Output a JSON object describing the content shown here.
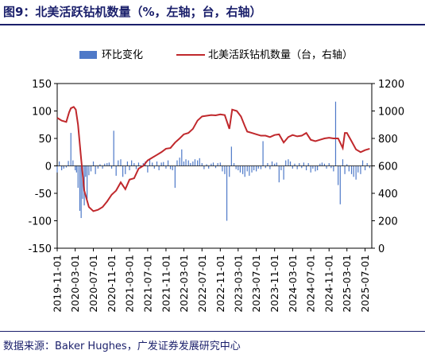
{
  "title": "图9：北美活跃钻机数量（%，左轴；台，右轴）",
  "source": "数据来源：Baker Hughes，广发证券发展研究中心",
  "chart_data": {
    "type": "bar+line",
    "x_ticks": [
      "2019-11-01",
      "2020-03-01",
      "2020-07-01",
      "2020-11-01",
      "2021-03-01",
      "2021-07-01",
      "2021-11-01",
      "2022-03-01",
      "2022-07-01",
      "2022-11-01",
      "2023-03-01",
      "2023-07-01",
      "2023-11-01",
      "2024-03-01",
      "2024-07-01",
      "2024-11-01",
      "2025-03-01",
      "2025-07-01"
    ],
    "xlim": [
      "2019-11-01",
      "2025-08-15"
    ],
    "left_axis": {
      "ticks": [
        "150",
        "100",
        "50",
        "0",
        "-50",
        "-100",
        "-150"
      ],
      "ylim": [
        -150,
        150
      ]
    },
    "right_axis": {
      "ticks": [
        "1200",
        "1000",
        "800",
        "600",
        "400",
        "200",
        "0"
      ],
      "ylim": [
        0,
        1200
      ]
    },
    "legend": {
      "placement": "top",
      "bar_label": "环比变化",
      "line_label": "北美活跃钻机数量（台，右轴）"
    },
    "colors": {
      "bar": "#4e79c8",
      "line": "#c0282c"
    },
    "line_series": [
      [
        "2019-11-01",
        950
      ],
      [
        "2019-12-01",
        930
      ],
      [
        "2020-01-01",
        920
      ],
      [
        "2020-01-20",
        990
      ],
      [
        "2020-02-01",
        1020
      ],
      [
        "2020-02-20",
        1030
      ],
      [
        "2020-03-05",
        1010
      ],
      [
        "2020-03-20",
        900
      ],
      [
        "2020-04-10",
        650
      ],
      [
        "2020-05-01",
        420
      ],
      [
        "2020-06-01",
        300
      ],
      [
        "2020-07-01",
        270
      ],
      [
        "2020-08-01",
        280
      ],
      [
        "2020-09-01",
        300
      ],
      [
        "2020-10-01",
        340
      ],
      [
        "2020-11-01",
        390
      ],
      [
        "2020-12-01",
        420
      ],
      [
        "2021-01-01",
        480
      ],
      [
        "2021-02-01",
        430
      ],
      [
        "2021-03-01",
        500
      ],
      [
        "2021-04-01",
        510
      ],
      [
        "2021-05-01",
        580
      ],
      [
        "2021-06-01",
        600
      ],
      [
        "2021-07-01",
        640
      ],
      [
        "2021-08-01",
        660
      ],
      [
        "2021-09-01",
        680
      ],
      [
        "2021-10-01",
        700
      ],
      [
        "2021-11-01",
        725
      ],
      [
        "2021-12-01",
        730
      ],
      [
        "2022-01-01",
        770
      ],
      [
        "2022-02-01",
        800
      ],
      [
        "2022-03-01",
        830
      ],
      [
        "2022-04-01",
        840
      ],
      [
        "2022-05-01",
        870
      ],
      [
        "2022-06-01",
        930
      ],
      [
        "2022-07-01",
        960
      ],
      [
        "2022-08-01",
        965
      ],
      [
        "2022-09-01",
        970
      ],
      [
        "2022-10-01",
        968
      ],
      [
        "2022-11-01",
        975
      ],
      [
        "2022-12-01",
        970
      ],
      [
        "2023-01-01",
        870
      ],
      [
        "2023-01-20",
        1010
      ],
      [
        "2023-02-20",
        1000
      ],
      [
        "2023-03-20",
        960
      ],
      [
        "2023-04-15",
        890
      ],
      [
        "2023-05-01",
        850
      ],
      [
        "2023-06-01",
        840
      ],
      [
        "2023-07-01",
        830
      ],
      [
        "2023-08-01",
        820
      ],
      [
        "2023-09-01",
        820
      ],
      [
        "2023-10-01",
        810
      ],
      [
        "2023-11-01",
        825
      ],
      [
        "2023-12-01",
        830
      ],
      [
        "2024-01-01",
        770
      ],
      [
        "2024-02-01",
        810
      ],
      [
        "2024-03-01",
        825
      ],
      [
        "2024-04-01",
        815
      ],
      [
        "2024-05-01",
        820
      ],
      [
        "2024-06-01",
        840
      ],
      [
        "2024-07-01",
        790
      ],
      [
        "2024-08-01",
        780
      ],
      [
        "2024-09-01",
        790
      ],
      [
        "2024-10-01",
        800
      ],
      [
        "2024-11-01",
        805
      ],
      [
        "2024-12-01",
        800
      ],
      [
        "2025-01-01",
        800
      ],
      [
        "2025-02-01",
        730
      ],
      [
        "2025-02-15",
        840
      ],
      [
        "2025-03-01",
        840
      ],
      [
        "2025-04-01",
        780
      ],
      [
        "2025-05-01",
        720
      ],
      [
        "2025-06-01",
        700
      ],
      [
        "2025-07-01",
        715
      ],
      [
        "2025-08-01",
        725
      ]
    ],
    "bar_series": [
      [
        "2019-11-01",
        -12
      ],
      [
        "2019-11-15",
        8
      ],
      [
        "2019-12-01",
        -8
      ],
      [
        "2019-12-15",
        -5
      ],
      [
        "2020-01-01",
        -3
      ],
      [
        "2020-01-15",
        9
      ],
      [
        "2020-02-01",
        60
      ],
      [
        "2020-02-15",
        10
      ],
      [
        "2020-03-01",
        -8
      ],
      [
        "2020-03-10",
        -12
      ],
      [
        "2020-03-20",
        -40
      ],
      [
        "2020-04-01",
        -82
      ],
      [
        "2020-04-10",
        -95
      ],
      [
        "2020-04-20",
        -60
      ],
      [
        "2020-05-01",
        -72
      ],
      [
        "2020-05-10",
        -20
      ],
      [
        "2020-05-20",
        -60
      ],
      [
        "2020-06-01",
        -17
      ],
      [
        "2020-06-15",
        -10
      ],
      [
        "2020-07-01",
        8
      ],
      [
        "2020-07-15",
        -15
      ],
      [
        "2020-08-01",
        -5
      ],
      [
        "2020-08-15",
        3
      ],
      [
        "2020-09-01",
        -5
      ],
      [
        "2020-09-15",
        4
      ],
      [
        "2020-10-01",
        5
      ],
      [
        "2020-10-15",
        6
      ],
      [
        "2020-11-01",
        -5
      ],
      [
        "2020-11-15",
        64
      ],
      [
        "2020-12-01",
        -18
      ],
      [
        "2020-12-15",
        10
      ],
      [
        "2021-01-01",
        12
      ],
      [
        "2021-01-15",
        -20
      ],
      [
        "2021-02-01",
        -15
      ],
      [
        "2021-02-15",
        8
      ],
      [
        "2021-03-01",
        -8
      ],
      [
        "2021-03-15",
        10
      ],
      [
        "2021-04-01",
        5
      ],
      [
        "2021-04-15",
        -6
      ],
      [
        "2021-05-01",
        6
      ],
      [
        "2021-05-15",
        -4
      ],
      [
        "2021-06-01",
        5
      ],
      [
        "2021-06-15",
        8
      ],
      [
        "2021-07-01",
        -12
      ],
      [
        "2021-07-15",
        12
      ],
      [
        "2021-08-01",
        6
      ],
      [
        "2021-08-15",
        -5
      ],
      [
        "2021-09-01",
        8
      ],
      [
        "2021-09-15",
        -8
      ],
      [
        "2021-10-01",
        6
      ],
      [
        "2021-10-15",
        7
      ],
      [
        "2021-11-01",
        -5
      ],
      [
        "2021-11-15",
        10
      ],
      [
        "2021-12-01",
        -6
      ],
      [
        "2021-12-15",
        -8
      ],
      [
        "2022-01-01",
        -40
      ],
      [
        "2022-01-15",
        10
      ],
      [
        "2022-02-01",
        15
      ],
      [
        "2022-02-15",
        30
      ],
      [
        "2022-03-01",
        8
      ],
      [
        "2022-03-15",
        12
      ],
      [
        "2022-04-01",
        10
      ],
      [
        "2022-04-15",
        5
      ],
      [
        "2022-05-01",
        8
      ],
      [
        "2022-05-15",
        12
      ],
      [
        "2022-06-01",
        10
      ],
      [
        "2022-06-15",
        14
      ],
      [
        "2022-07-01",
        5
      ],
      [
        "2022-07-15",
        -6
      ],
      [
        "2022-08-01",
        3
      ],
      [
        "2022-08-15",
        -5
      ],
      [
        "2022-09-01",
        4
      ],
      [
        "2022-09-15",
        6
      ],
      [
        "2022-10-01",
        -4
      ],
      [
        "2022-10-15",
        5
      ],
      [
        "2022-11-01",
        6
      ],
      [
        "2022-11-15",
        -10
      ],
      [
        "2022-12-01",
        -15
      ],
      [
        "2022-12-15",
        -100
      ],
      [
        "2023-01-01",
        -20
      ],
      [
        "2023-01-15",
        35
      ],
      [
        "2023-02-01",
        5
      ],
      [
        "2023-02-15",
        -6
      ],
      [
        "2023-03-01",
        -8
      ],
      [
        "2023-03-15",
        -12
      ],
      [
        "2023-04-01",
        -15
      ],
      [
        "2023-04-15",
        -20
      ],
      [
        "2023-05-01",
        -10
      ],
      [
        "2023-05-15",
        -18
      ],
      [
        "2023-06-01",
        -12
      ],
      [
        "2023-06-15",
        -8
      ],
      [
        "2023-07-01",
        -10
      ],
      [
        "2023-07-15",
        -5
      ],
      [
        "2023-08-01",
        -6
      ],
      [
        "2023-08-15",
        45
      ],
      [
        "2023-09-01",
        -4
      ],
      [
        "2023-09-15",
        5
      ],
      [
        "2023-10-01",
        -6
      ],
      [
        "2023-10-15",
        8
      ],
      [
        "2023-11-01",
        4
      ],
      [
        "2023-11-15",
        6
      ],
      [
        "2023-12-01",
        -30
      ],
      [
        "2023-12-15",
        -8
      ],
      [
        "2024-01-01",
        -25
      ],
      [
        "2024-01-15",
        10
      ],
      [
        "2024-02-01",
        12
      ],
      [
        "2024-02-15",
        8
      ],
      [
        "2024-03-01",
        -5
      ],
      [
        "2024-03-15",
        4
      ],
      [
        "2024-04-01",
        -6
      ],
      [
        "2024-04-15",
        5
      ],
      [
        "2024-05-01",
        -4
      ],
      [
        "2024-05-15",
        6
      ],
      [
        "2024-06-01",
        -8
      ],
      [
        "2024-06-15",
        5
      ],
      [
        "2024-07-01",
        -12
      ],
      [
        "2024-07-15",
        -5
      ],
      [
        "2024-08-01",
        -10
      ],
      [
        "2024-08-15",
        -8
      ],
      [
        "2024-09-01",
        4
      ],
      [
        "2024-09-15",
        6
      ],
      [
        "2024-10-01",
        4
      ],
      [
        "2024-10-15",
        -5
      ],
      [
        "2024-11-01",
        5
      ],
      [
        "2024-11-15",
        -4
      ],
      [
        "2024-12-01",
        -10
      ],
      [
        "2024-12-15",
        117
      ],
      [
        "2025-01-01",
        -35
      ],
      [
        "2025-01-15",
        -70
      ],
      [
        "2025-02-01",
        12
      ],
      [
        "2025-02-15",
        -15
      ],
      [
        "2025-03-01",
        3
      ],
      [
        "2025-03-15",
        -10
      ],
      [
        "2025-04-01",
        -15
      ],
      [
        "2025-04-15",
        -20
      ],
      [
        "2025-05-01",
        -25
      ],
      [
        "2025-05-15",
        -12
      ],
      [
        "2025-06-01",
        -15
      ],
      [
        "2025-06-15",
        10
      ],
      [
        "2025-07-01",
        -8
      ],
      [
        "2025-07-15",
        5
      ],
      [
        "2025-08-01",
        -4
      ]
    ]
  }
}
